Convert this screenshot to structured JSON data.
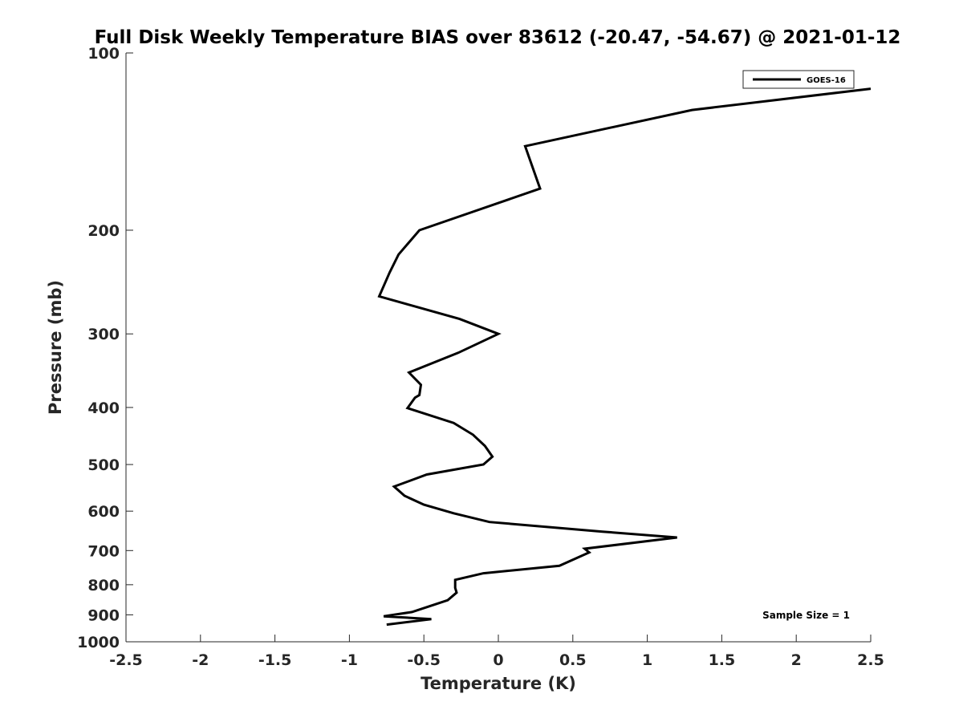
{
  "chart_data": {
    "type": "line",
    "title": "Full Disk Weekly Temperature BIAS over 83612 (-20.47, -54.67) @ 2021-01-12",
    "xlabel": "Temperature (K)",
    "ylabel": "Pressure (mb)",
    "xlim": [
      -2.5,
      2.5
    ],
    "ylim": [
      100,
      1000
    ],
    "y_scale": "log",
    "y_reversed": true,
    "xticks": [
      -2.5,
      -2,
      -1.5,
      -1,
      -0.5,
      0,
      0.5,
      1,
      1.5,
      2,
      2.5
    ],
    "xtick_labels": [
      "-2.5",
      "-2",
      "-1.5",
      "-1",
      "-0.5",
      "0",
      "0.5",
      "1",
      "1.5",
      "2",
      "2.5"
    ],
    "yticks": [
      100,
      200,
      300,
      400,
      500,
      600,
      700,
      800,
      900,
      1000
    ],
    "ytick_labels": [
      "100",
      "200",
      "300",
      "400",
      "500",
      "600",
      "700",
      "800",
      "900",
      "1000"
    ],
    "grid": false,
    "legend_position": "top-right",
    "series": [
      {
        "name": "GOES-16",
        "color": "#000000",
        "x": [
          2.5,
          1.3,
          0.18,
          0.28,
          -0.53,
          -0.67,
          -0.73,
          -0.8,
          -0.26,
          0.0,
          -0.27,
          -0.6,
          -0.52,
          -0.53,
          -0.56,
          -0.61,
          -0.3,
          -0.17,
          -0.09,
          -0.04,
          -0.1,
          -0.48,
          -0.7,
          -0.63,
          -0.5,
          -0.3,
          -0.06,
          0.7,
          1.2,
          0.58,
          0.61,
          0.41,
          -0.1,
          -0.29,
          -0.29,
          -0.28,
          -0.34,
          -0.46,
          -0.58,
          -0.77,
          -0.45,
          -0.75
        ],
        "y": [
          115,
          125,
          144,
          170,
          200,
          220,
          236,
          259,
          283,
          300,
          323,
          349,
          366,
          381,
          385,
          401,
          425,
          445,
          465,
          485,
          500,
          520,
          545,
          565,
          585,
          605,
          626,
          650,
          665,
          695,
          705,
          743,
          765,
          785,
          810,
          825,
          850,
          870,
          890,
          905,
          915,
          935
        ]
      }
    ],
    "annotations": [
      "Sample Size = 1"
    ]
  }
}
